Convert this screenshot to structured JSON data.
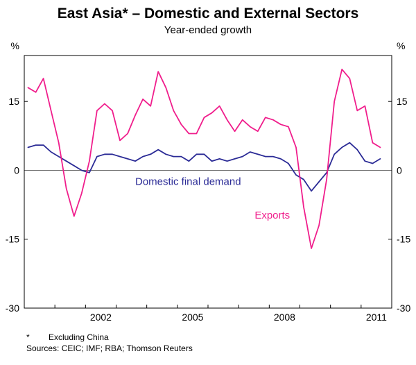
{
  "header": {
    "title": "East Asia* – Domestic and External Sectors",
    "subtitle": "Year-ended growth"
  },
  "footer": {
    "footnote_marker": "*",
    "footnote_text": "Excluding China",
    "sources": "Sources: CEIC; IMF; RBA; Thomson Reuters"
  },
  "chart_data": {
    "type": "line",
    "unit": "%",
    "xlim": [
      2000,
      2012
    ],
    "ylim": [
      -30,
      25
    ],
    "yticks": [
      -30,
      -15,
      0,
      15
    ],
    "xticks_labeled": [
      2002,
      2005,
      2008,
      2011
    ],
    "x_start": 2000.125,
    "x_step": 0.25,
    "frequency": "quarterly",
    "grid": "zero-line-only",
    "series": [
      {
        "name": "Domestic final demand",
        "color": "#2b2b96",
        "values": [
          5,
          5.5,
          5.5,
          4,
          3,
          2,
          1,
          0,
          -0.5,
          3,
          3.5,
          3.5,
          3,
          2.5,
          2,
          3,
          3.5,
          4.5,
          3.5,
          3,
          3,
          2,
          3.5,
          3.5,
          2,
          2.5,
          2,
          2.5,
          3,
          4,
          3.5,
          3,
          3,
          2.5,
          1.5,
          -1,
          -2,
          -4.5,
          -2.5,
          -0.5,
          3.5,
          5,
          6,
          4.5,
          2,
          1.5,
          2.5
        ]
      },
      {
        "name": "Exports",
        "color": "#f01e8c",
        "values": [
          18,
          17,
          20,
          13,
          6,
          -4,
          -10,
          -5,
          2,
          13,
          14.5,
          13,
          6.5,
          8,
          12,
          15.5,
          14,
          21.5,
          18,
          13,
          10,
          8,
          8,
          11.5,
          12.5,
          14,
          11,
          8.5,
          11,
          9.5,
          8.5,
          11.5,
          11,
          10,
          9.5,
          5,
          -8,
          -17,
          -12,
          -2,
          15,
          22,
          20,
          13,
          14,
          6,
          5
        ]
      }
    ],
    "annotations": [
      {
        "text": "Domestic final demand",
        "x": 2005.35,
        "y": -3.2,
        "color": "#2b2b96"
      },
      {
        "text": "Exports",
        "x": 2008.1,
        "y": -10.5,
        "color": "#f01e8c"
      }
    ]
  }
}
